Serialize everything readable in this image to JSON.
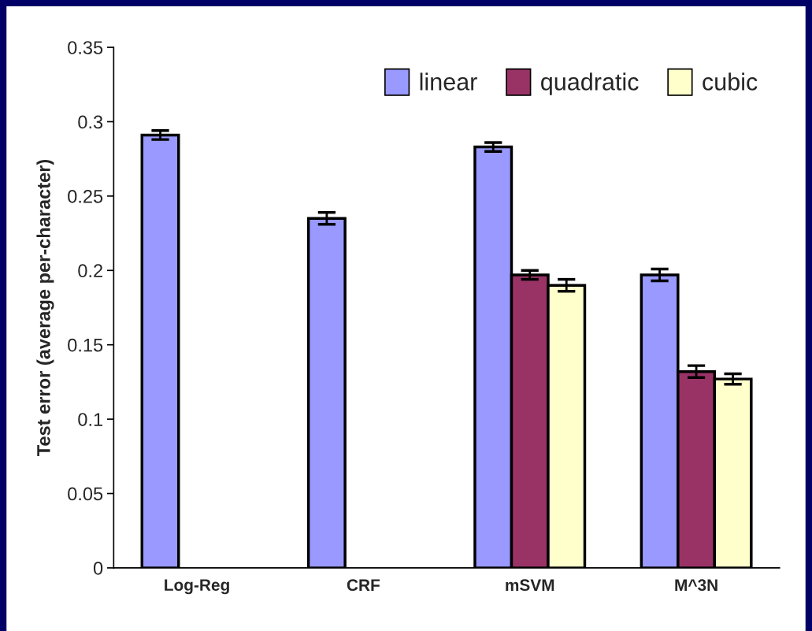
{
  "chart_data": {
    "type": "bar",
    "ylabel": "Test error (average per-character)",
    "categories": [
      "Log-Reg",
      "CRF",
      "mSVM",
      "M^3N"
    ],
    "series": [
      {
        "name": "linear",
        "color": "#9999ff",
        "values": [
          0.291,
          0.235,
          0.283,
          0.197
        ],
        "errors": [
          0.003,
          0.004,
          0.003,
          0.004
        ]
      },
      {
        "name": "quadratic",
        "color": "#993366",
        "values": [
          null,
          null,
          0.197,
          0.132
        ],
        "errors": [
          null,
          null,
          0.003,
          0.004
        ]
      },
      {
        "name": "cubic",
        "color": "#ffffcc",
        "values": [
          null,
          null,
          0.19,
          0.127
        ],
        "errors": [
          null,
          null,
          0.004,
          0.0035
        ]
      }
    ],
    "ylim": [
      0,
      0.35
    ],
    "yticks": [
      {
        "value": 0,
        "label": "0"
      },
      0.05,
      {
        "value": 0.1,
        "label": "0.1"
      },
      0.15,
      {
        "value": 0.2,
        "label": "0.2"
      },
      0.25,
      {
        "value": 0.3,
        "label": "0.3"
      },
      0.35
    ],
    "grid": false,
    "legend": "top right"
  }
}
